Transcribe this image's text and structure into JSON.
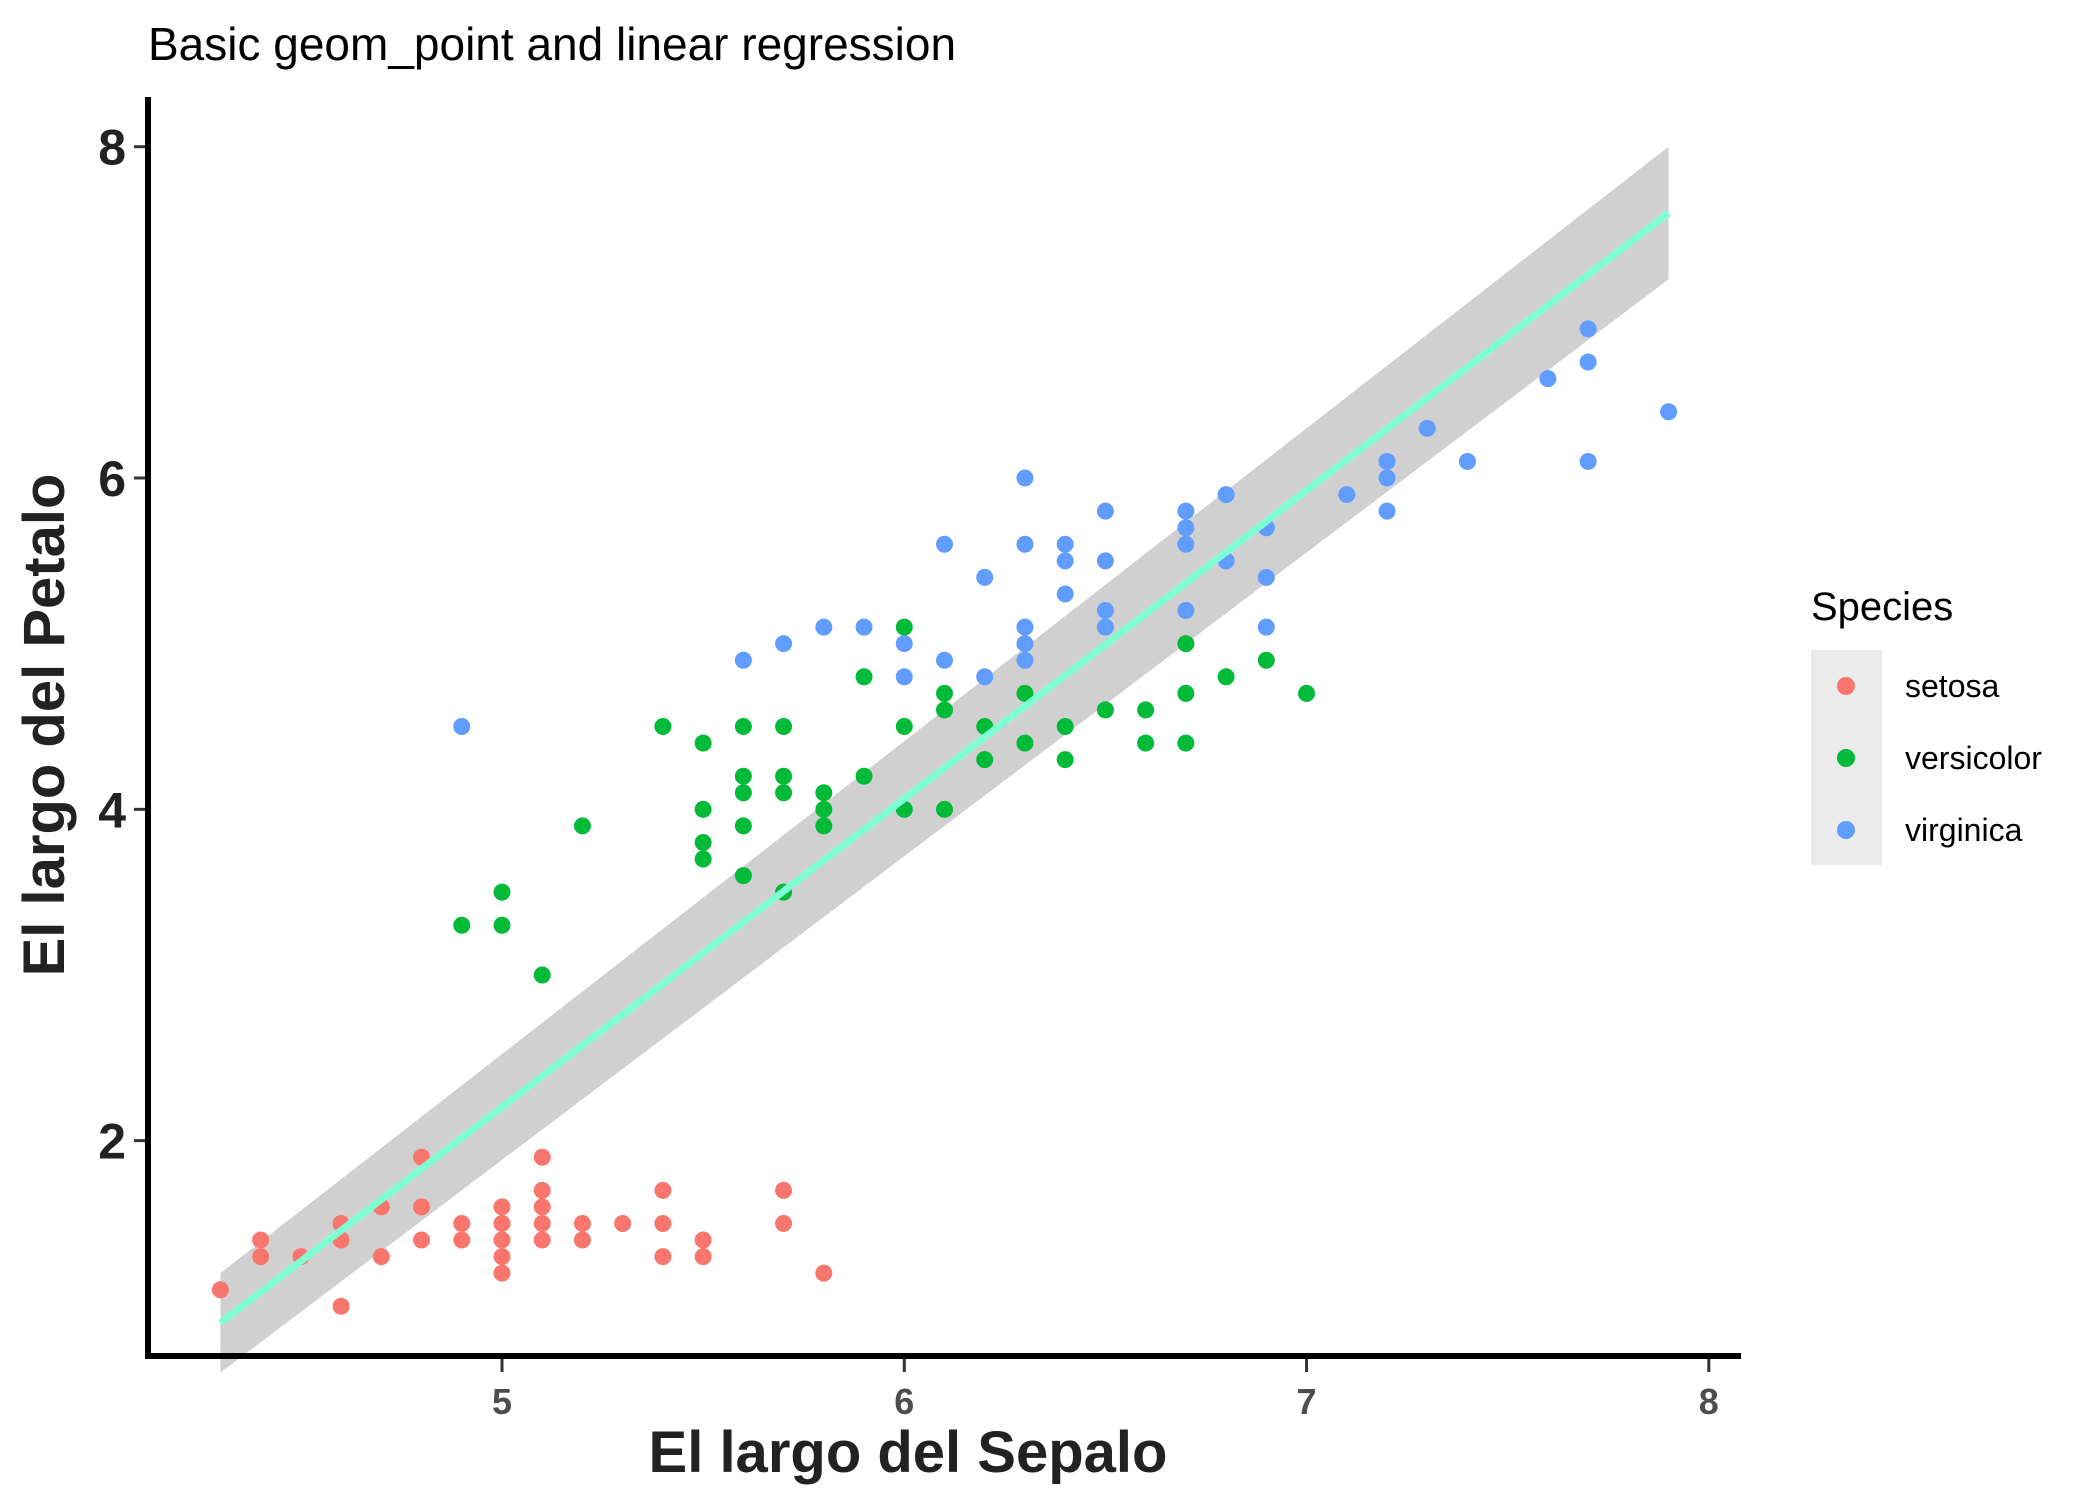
{
  "chart_data": {
    "type": "scatter",
    "title": "Basic geom_point and linear regression",
    "xlabel": "El largo del Sepalo",
    "ylabel": "El largo del Petalo",
    "xlim": [
      4.12,
      8.08
    ],
    "ylim": [
      0.7,
      8.3
    ],
    "xticks": [
      5,
      6,
      7,
      8
    ],
    "xtick_labels": [
      "5",
      "6",
      "7",
      "8"
    ],
    "yticks": [
      2,
      4,
      6,
      8
    ],
    "ytick_labels": [
      "2",
      "4",
      "6",
      "8"
    ],
    "grid": false,
    "legend": {
      "title": "Species",
      "placement": "right",
      "entries": [
        "setosa",
        "versicolor",
        "virginica"
      ]
    },
    "colors": {
      "setosa": "#F8766D",
      "versicolor": "#00BA38",
      "virginica": "#619CFF",
      "regression_line": "#7FFFD4",
      "confidence_band": "#C0C0C0",
      "legend_key_bg": "#EBEBEB"
    },
    "regression": {
      "method": "lm",
      "x_range": [
        4.3,
        7.9
      ],
      "y_start": 0.9,
      "y_end": 7.6,
      "ci_start": [
        0.6,
        1.2
      ],
      "ci_end": [
        7.2,
        8.0
      ]
    },
    "series": [
      {
        "name": "setosa",
        "points": [
          [
            4.3,
            1.1
          ],
          [
            4.4,
            1.3
          ],
          [
            4.4,
            1.4
          ],
          [
            4.5,
            1.3
          ],
          [
            4.6,
            1.0
          ],
          [
            4.6,
            1.4
          ],
          [
            4.6,
            1.5
          ],
          [
            4.7,
            1.3
          ],
          [
            4.7,
            1.6
          ],
          [
            4.8,
            1.4
          ],
          [
            4.8,
            1.6
          ],
          [
            4.8,
            1.9
          ],
          [
            4.9,
            1.4
          ],
          [
            4.9,
            1.5
          ],
          [
            5.0,
            1.2
          ],
          [
            5.0,
            1.3
          ],
          [
            5.0,
            1.4
          ],
          [
            5.0,
            1.5
          ],
          [
            5.0,
            1.6
          ],
          [
            5.1,
            1.4
          ],
          [
            5.1,
            1.5
          ],
          [
            5.1,
            1.6
          ],
          [
            5.1,
            1.7
          ],
          [
            5.1,
            1.9
          ],
          [
            5.2,
            1.4
          ],
          [
            5.2,
            1.5
          ],
          [
            5.3,
            1.5
          ],
          [
            5.4,
            1.3
          ],
          [
            5.4,
            1.5
          ],
          [
            5.4,
            1.7
          ],
          [
            5.5,
            1.3
          ],
          [
            5.5,
            1.4
          ],
          [
            5.7,
            1.5
          ],
          [
            5.7,
            1.7
          ],
          [
            5.8,
            1.2
          ]
        ]
      },
      {
        "name": "versicolor",
        "points": [
          [
            4.9,
            3.3
          ],
          [
            5.0,
            3.3
          ],
          [
            5.0,
            3.5
          ],
          [
            5.1,
            3.0
          ],
          [
            5.2,
            3.9
          ],
          [
            5.4,
            4.5
          ],
          [
            5.5,
            3.7
          ],
          [
            5.5,
            3.8
          ],
          [
            5.5,
            4.0
          ],
          [
            5.5,
            4.4
          ],
          [
            5.6,
            3.6
          ],
          [
            5.6,
            3.9
          ],
          [
            5.6,
            4.1
          ],
          [
            5.6,
            4.2
          ],
          [
            5.6,
            4.5
          ],
          [
            5.7,
            3.5
          ],
          [
            5.7,
            4.1
          ],
          [
            5.7,
            4.2
          ],
          [
            5.7,
            4.5
          ],
          [
            5.8,
            3.9
          ],
          [
            5.8,
            4.0
          ],
          [
            5.8,
            4.1
          ],
          [
            5.9,
            4.2
          ],
          [
            5.9,
            4.8
          ],
          [
            6.0,
            4.0
          ],
          [
            6.0,
            4.5
          ],
          [
            6.0,
            5.1
          ],
          [
            6.1,
            4.0
          ],
          [
            6.1,
            4.6
          ],
          [
            6.1,
            4.7
          ],
          [
            6.2,
            4.3
          ],
          [
            6.2,
            4.5
          ],
          [
            6.3,
            4.4
          ],
          [
            6.3,
            4.7
          ],
          [
            6.4,
            4.3
          ],
          [
            6.4,
            4.5
          ],
          [
            6.5,
            4.6
          ],
          [
            6.6,
            4.4
          ],
          [
            6.6,
            4.6
          ],
          [
            6.7,
            4.4
          ],
          [
            6.7,
            4.7
          ],
          [
            6.7,
            5.0
          ],
          [
            6.8,
            4.8
          ],
          [
            6.9,
            4.9
          ],
          [
            7.0,
            4.7
          ]
        ]
      },
      {
        "name": "virginica",
        "points": [
          [
            4.9,
            4.5
          ],
          [
            5.6,
            4.9
          ],
          [
            5.7,
            5.0
          ],
          [
            5.8,
            5.1
          ],
          [
            5.9,
            5.1
          ],
          [
            6.0,
            4.8
          ],
          [
            6.0,
            5.0
          ],
          [
            6.1,
            4.9
          ],
          [
            6.1,
            5.6
          ],
          [
            6.2,
            4.8
          ],
          [
            6.2,
            5.4
          ],
          [
            6.3,
            4.9
          ],
          [
            6.3,
            5.0
          ],
          [
            6.3,
            5.1
          ],
          [
            6.3,
            5.6
          ],
          [
            6.3,
            6.0
          ],
          [
            6.4,
            5.3
          ],
          [
            6.4,
            5.5
          ],
          [
            6.4,
            5.6
          ],
          [
            6.5,
            5.1
          ],
          [
            6.5,
            5.2
          ],
          [
            6.5,
            5.5
          ],
          [
            6.5,
            5.8
          ],
          [
            6.7,
            5.2
          ],
          [
            6.7,
            5.6
          ],
          [
            6.7,
            5.7
          ],
          [
            6.7,
            5.8
          ],
          [
            6.8,
            5.5
          ],
          [
            6.8,
            5.9
          ],
          [
            6.9,
            5.1
          ],
          [
            6.9,
            5.4
          ],
          [
            6.9,
            5.7
          ],
          [
            7.1,
            5.9
          ],
          [
            7.2,
            5.8
          ],
          [
            7.2,
            6.0
          ],
          [
            7.2,
            6.1
          ],
          [
            7.3,
            6.3
          ],
          [
            7.4,
            6.1
          ],
          [
            7.6,
            6.6
          ],
          [
            7.7,
            6.1
          ],
          [
            7.7,
            6.7
          ],
          [
            7.7,
            6.9
          ],
          [
            7.9,
            6.4
          ]
        ]
      }
    ]
  }
}
